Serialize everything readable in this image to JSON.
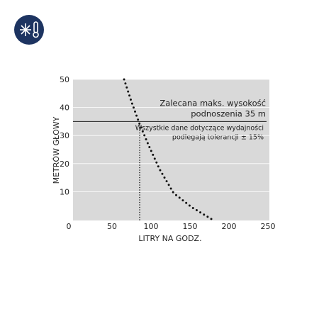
{
  "chart_data": {
    "type": "line",
    "x_label": "LITRY NA GODZ.",
    "y_label": "METRÓW GŁOWY",
    "xlim": [
      0,
      250
    ],
    "xticks": [
      0,
      50,
      100,
      150,
      200,
      250
    ],
    "ylim": [
      0,
      50
    ],
    "yticks": [
      10,
      20,
      30,
      40,
      50
    ],
    "grid": true,
    "reference_line": 35,
    "annotation_main": [
      "Zalecana maks. wysokość",
      "podnoszenia 35 m"
    ],
    "annotation_note": [
      "Wszystkie dane dotyczące wydajności",
      "podlegają tolerancji ± 15%"
    ],
    "series": [
      {
        "color": "#111111",
        "x": [
          65.5,
          75,
          85.5,
          97,
          111,
          129,
          152,
          179
        ],
        "values": [
          50,
          42,
          34,
          26.5,
          18,
          9.5,
          4.5,
          0
        ]
      },
      {
        "color": "#111111",
        "x": [
          85.5,
          85.5
        ],
        "values": [
          0,
          35
        ]
      }
    ]
  }
}
